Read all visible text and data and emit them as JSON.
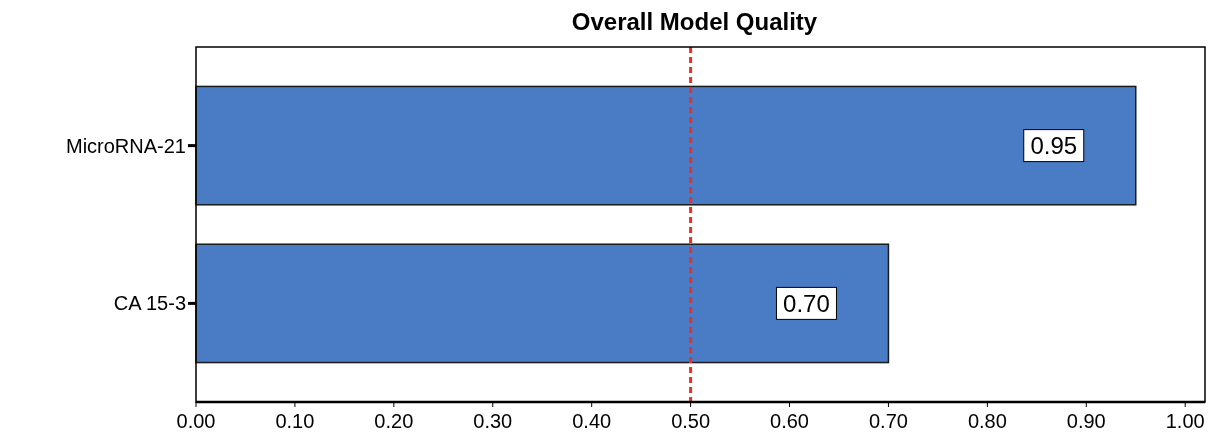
{
  "chart_data": {
    "type": "bar",
    "orientation": "horizontal",
    "title": "Overall Model Quality",
    "categories": [
      "MicroRNA-21",
      "CA 15-3"
    ],
    "values": [
      0.95,
      0.7
    ],
    "value_labels": [
      "0.95",
      "0.70"
    ],
    "color": "#4a7cc6",
    "xlim": [
      0,
      1.02
    ],
    "xticks": [
      {
        "value": 0,
        "label": "0.00"
      },
      {
        "value": 0.1,
        "label": "0.10"
      },
      {
        "value": 0.2,
        "label": "0.20"
      },
      {
        "value": 0.3,
        "label": "0.30"
      },
      {
        "value": 0.4,
        "label": "0.40"
      },
      {
        "value": 0.5,
        "label": "0.50"
      },
      {
        "value": 0.6,
        "label": "0.60"
      },
      {
        "value": 0.7,
        "label": "0.70"
      },
      {
        "value": 0.8,
        "label": "0.80"
      },
      {
        "value": 0.9,
        "label": "0.90"
      },
      {
        "value": 1,
        "label": "1.00"
      }
    ],
    "ref_lines": [
      {
        "axis": "x",
        "value": 0.5,
        "color": "#e8302a",
        "line_style": "dashed"
      }
    ],
    "grid": false
  }
}
